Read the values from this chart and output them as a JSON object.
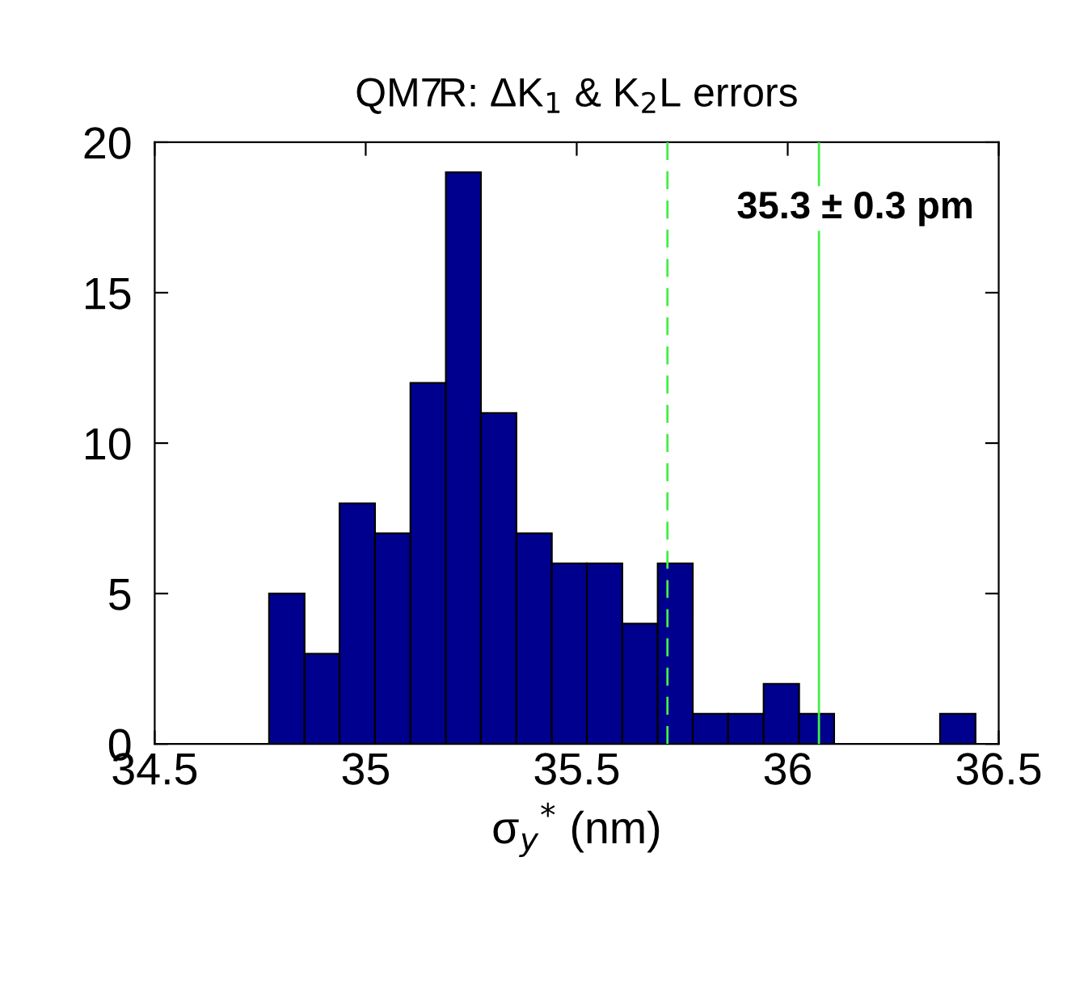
{
  "chart_data": {
    "type": "histogram",
    "title": "QM7R: ΔK$_{1}$ & K$_{2}$L errors",
    "xlabel": "σ$_{y}$$^{*}$ (nm)",
    "bins": [
      34.771,
      34.855,
      34.938,
      35.022,
      35.106,
      35.19,
      35.273,
      35.357,
      35.441,
      35.524,
      35.608,
      35.692,
      35.775,
      35.859,
      35.943,
      36.027,
      36.11,
      36.194,
      36.278,
      36.361,
      36.445
    ],
    "values": [
      5,
      3,
      8,
      7,
      12,
      19,
      11,
      7,
      6,
      6,
      4,
      6,
      1,
      1,
      2,
      1,
      0,
      0,
      0,
      1
    ],
    "color": "#00008f",
    "xlim": [
      34.5,
      36.5
    ],
    "xticks": [
      34.5,
      35,
      35.5,
      36,
      36.5
    ],
    "ylim": [
      0,
      20
    ],
    "yticks": [
      0,
      5,
      10,
      15,
      20
    ],
    "ref_lines": [
      {
        "axis": "x",
        "value": 35.715,
        "color": "#44ee44",
        "line_style": "dashed"
      },
      {
        "axis": "x",
        "value": 36.074,
        "color": "#44ee44",
        "line_style": "solid"
      }
    ],
    "annotations": [
      "35.3 ± 0.3 pm"
    ],
    "grid": false,
    "legend": false
  }
}
